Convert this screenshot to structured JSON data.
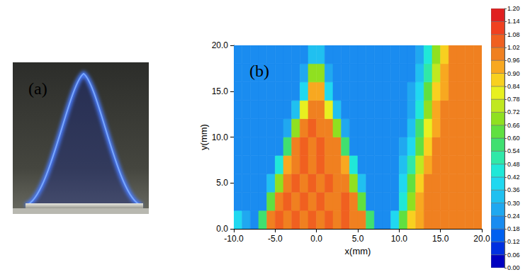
{
  "chart_data": {
    "type": "heatmap",
    "annotations": [
      "(a)",
      "(b)"
    ],
    "xlabel": "x(mm)",
    "ylabel": "y(mm)",
    "xlim": [
      -10,
      20
    ],
    "xticks": [
      {
        "value": -10,
        "label": "-10.0"
      },
      {
        "value": -5,
        "label": "-5.0"
      },
      {
        "value": 0,
        "label": "0.0"
      },
      {
        "value": 5,
        "label": "5.0"
      },
      {
        "value": 10,
        "label": "10.0"
      },
      {
        "value": 15,
        "label": "15.0"
      },
      {
        "value": 20,
        "label": "20.0"
      }
    ],
    "ylim": [
      0,
      20
    ],
    "yticks": [
      {
        "value": 0,
        "label": "0.0"
      },
      {
        "value": 5,
        "label": "5.0"
      },
      {
        "value": 10,
        "label": "10.0"
      },
      {
        "value": 15,
        "label": "15.0"
      },
      {
        "value": 20,
        "label": "20.0"
      }
    ],
    "cells": {
      "x": [
        -9.5,
        -8.5,
        -7.5,
        -6.5,
        -5.5,
        -4.5,
        -3.5,
        -2.5,
        -1.5,
        -0.5,
        0.5,
        1.5,
        2.5,
        3.5,
        4.5,
        5.5,
        6.5,
        7.5,
        8.5,
        9.5,
        10.5,
        11.5,
        12.5,
        13.5,
        14.5,
        15.5,
        16.5,
        17.5,
        18.5,
        19.5
      ],
      "y": [
        1,
        3,
        5,
        7,
        9,
        11,
        13,
        15,
        17,
        19
      ],
      "values": [
        [
          0.36,
          0.24,
          0.2,
          0.55,
          1.0,
          1.02,
          1.0,
          1.04,
          1.0,
          1.02,
          1.0,
          1.03,
          1.0,
          1.02,
          1.0,
          1.0,
          0.55,
          0.22,
          0.2,
          0.36,
          0.6,
          0.85,
          0.95,
          0.98,
          1.0,
          0.97,
          1.0,
          0.98,
          1.0,
          0.97
        ],
        [
          0.22,
          0.2,
          0.2,
          0.2,
          0.6,
          1.0,
          1.02,
          1.0,
          1.04,
          1.0,
          1.02,
          1.0,
          1.0,
          1.03,
          1.0,
          0.6,
          0.2,
          0.2,
          0.18,
          0.22,
          0.45,
          0.7,
          0.9,
          0.97,
          1.0,
          0.98,
          1.0,
          0.96,
          1.0,
          0.98
        ],
        [
          0.2,
          0.18,
          0.2,
          0.2,
          0.3,
          0.7,
          1.0,
          1.02,
          1.0,
          1.04,
          1.0,
          1.02,
          1.0,
          1.0,
          0.7,
          0.3,
          0.2,
          0.18,
          0.2,
          0.2,
          0.36,
          0.6,
          0.85,
          0.96,
          1.0,
          0.98,
          1.0,
          1.0,
          0.97,
          1.0
        ],
        [
          0.2,
          0.2,
          0.18,
          0.2,
          0.2,
          0.45,
          0.92,
          1.0,
          1.02,
          1.0,
          1.04,
          1.0,
          1.0,
          0.92,
          0.45,
          0.2,
          0.2,
          0.2,
          0.18,
          0.2,
          0.3,
          0.5,
          0.75,
          0.92,
          0.98,
          1.0,
          0.98,
          1.0,
          1.0,
          0.98
        ],
        [
          0.2,
          0.2,
          0.2,
          0.18,
          0.2,
          0.22,
          0.55,
          1.0,
          1.02,
          1.0,
          1.02,
          1.0,
          0.98,
          0.55,
          0.22,
          0.2,
          0.2,
          0.2,
          0.2,
          0.2,
          0.24,
          0.4,
          0.65,
          0.88,
          0.97,
          1.0,
          0.98,
          1.0,
          0.97,
          1.0
        ],
        [
          0.2,
          0.2,
          0.2,
          0.2,
          0.18,
          0.2,
          0.24,
          0.7,
          1.0,
          1.02,
          1.0,
          1.0,
          0.7,
          0.24,
          0.2,
          0.2,
          0.18,
          0.2,
          0.2,
          0.2,
          0.22,
          0.32,
          0.55,
          0.8,
          0.94,
          0.98,
          1.0,
          0.97,
          1.0,
          0.98
        ],
        [
          0.2,
          0.18,
          0.2,
          0.2,
          0.2,
          0.2,
          0.2,
          0.3,
          0.8,
          1.0,
          1.0,
          0.8,
          0.3,
          0.2,
          0.2,
          0.2,
          0.2,
          0.18,
          0.2,
          0.2,
          0.2,
          0.28,
          0.45,
          0.7,
          0.9,
          0.97,
          1.0,
          0.98,
          1.0,
          0.97
        ],
        [
          0.2,
          0.2,
          0.18,
          0.2,
          0.2,
          0.2,
          0.2,
          0.2,
          0.4,
          0.95,
          0.95,
          0.4,
          0.2,
          0.2,
          0.2,
          0.2,
          0.2,
          0.2,
          0.2,
          0.18,
          0.2,
          0.24,
          0.38,
          0.6,
          0.85,
          0.95,
          0.98,
          1.0,
          0.97,
          1.0
        ],
        [
          0.2,
          0.2,
          0.2,
          0.18,
          0.2,
          0.2,
          0.2,
          0.2,
          0.24,
          0.7,
          0.7,
          0.24,
          0.2,
          0.2,
          0.2,
          0.2,
          0.18,
          0.2,
          0.2,
          0.2,
          0.2,
          0.22,
          0.32,
          0.5,
          0.75,
          0.92,
          0.97,
          1.0,
          0.98,
          1.0
        ],
        [
          0.2,
          0.2,
          0.2,
          0.2,
          0.18,
          0.2,
          0.2,
          0.2,
          0.2,
          0.3,
          0.3,
          0.2,
          0.2,
          0.2,
          0.2,
          0.2,
          0.2,
          0.2,
          0.18,
          0.2,
          0.2,
          0.2,
          0.28,
          0.45,
          0.68,
          0.88,
          0.96,
          0.98,
          1.0,
          0.97
        ]
      ]
    },
    "colorbar": {
      "range": [
        0,
        1.2
      ],
      "ticks": [
        {
          "value": 0,
          "label": "0.00"
        },
        0.06,
        0.12,
        0.18,
        0.24,
        {
          "value": 0.3,
          "label": "0.30"
        },
        0.36,
        0.42,
        0.48,
        0.54,
        {
          "value": 0.6,
          "label": "0.60"
        },
        0.66,
        0.72,
        0.78,
        0.84,
        {
          "value": 0.9,
          "label": "0.90"
        },
        0.96,
        1.02,
        1.08,
        1.14,
        {
          "value": 1.2,
          "label": "1.20"
        }
      ],
      "colors": [
        "#0000c0",
        "#0030e0",
        "#0060f0",
        "#1a8cf0",
        "#20a8f0",
        "#20c0f0",
        "#20d8f0",
        "#20e8d8",
        "#30e8a8",
        "#40e070",
        "#60e040",
        "#90e020",
        "#c0e820",
        "#e8f020",
        "#f8d020",
        "#f8a820",
        "#f08020",
        "#f06020",
        "#f04020",
        "#e02020"
      ]
    }
  }
}
